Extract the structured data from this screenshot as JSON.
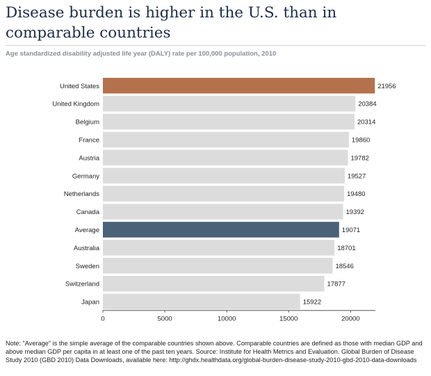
{
  "header": {
    "title": "Disease burden is higher in the U.S. than in comparable countries",
    "subtitle": "Age standardized disability adjusted life year (DALY) rate per 100,000 population, 2010"
  },
  "chart_data": {
    "type": "bar",
    "orientation": "horizontal",
    "categories": [
      "United States",
      "United Kingdom",
      "Belgium",
      "France",
      "Austria",
      "Germany",
      "Netherlands",
      "Canada",
      "Average",
      "Australia",
      "Sweden",
      "Switzerland",
      "Japan"
    ],
    "values": [
      21956,
      20384,
      20314,
      19860,
      19782,
      19527,
      19480,
      19392,
      19071,
      18701,
      18546,
      17877,
      15922
    ],
    "xlim": [
      0,
      22000
    ],
    "xticks": [
      0,
      5000,
      10000,
      15000,
      20000
    ],
    "colors": {
      "default": "#dcdcdc",
      "United States": "#b5714b",
      "Average": "#4a6278"
    }
  },
  "footer": {
    "note": "Note: \"Average\" is the simple average of the comparable countries shown above. Comparable countries are defined as those with median GDP and above median GDP per capita in at least one of the past ten years. Source: Institute for Health Metrics and Evaluation. Global Burden of Disease Study 2010 (GBD 2010) Data Downloads, available here: http://ghdx.healthdata.org/global-burden-disease-study-2010-gbd-2010-data-downloads"
  }
}
